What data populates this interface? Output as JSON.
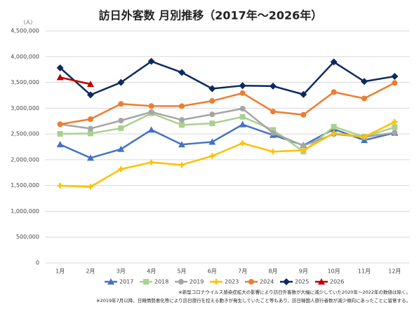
{
  "chart_data": {
    "type": "line",
    "title": "訪日外客数 月別推移（2017年～2026年）",
    "y_unit": "（人）",
    "categories": [
      "1月",
      "2月",
      "3月",
      "4月",
      "5月",
      "6月",
      "7月",
      "8月",
      "9月",
      "10月",
      "11月",
      "12月"
    ],
    "ylim": [
      0,
      4500000
    ],
    "yticks": [
      {
        "value": 0,
        "label": "0"
      },
      {
        "value": 500000,
        "label": "500,000"
      },
      {
        "value": 1000000,
        "label": "1,000,000"
      },
      {
        "value": 1500000,
        "label": "1,500,000"
      },
      {
        "value": 2000000,
        "label": "2,000,000"
      },
      {
        "value": 2500000,
        "label": "2,500,000"
      },
      {
        "value": 3000000,
        "label": "3,000,000"
      },
      {
        "value": 3500000,
        "label": "3,500,000"
      },
      {
        "value": 4000000,
        "label": "4,000,000"
      },
      {
        "value": 4500000,
        "label": "4,500,000"
      }
    ],
    "grid": true,
    "legend": "bottom",
    "series": [
      {
        "name": "2017",
        "color": "#4472c4",
        "marker": "triangle",
        "values": [
          2296000,
          2035000,
          2205000,
          2579000,
          2295000,
          2346000,
          2683000,
          2478000,
          2280000,
          2595000,
          2378000,
          2521000
        ]
      },
      {
        "name": "2018",
        "color": "#a9d18e",
        "marker": "square",
        "values": [
          2501000,
          2509000,
          2611000,
          2901000,
          2675000,
          2705000,
          2832000,
          2578000,
          2159000,
          2641000,
          2443000,
          2632000
        ]
      },
      {
        "name": "2019",
        "color": "#a5a5a5",
        "marker": "circle",
        "values": [
          2689000,
          2604000,
          2760000,
          2926000,
          2773000,
          2880000,
          2991000,
          2520000,
          2272000,
          2496000,
          2441000,
          2526000
        ]
      },
      {
        "name": "2023",
        "color": "#ffc000",
        "marker": "plus",
        "values": [
          1497000,
          1475000,
          1817000,
          1949000,
          1899000,
          2073000,
          2320000,
          2156000,
          2184000,
          2517000,
          2441000,
          2734000
        ]
      },
      {
        "name": "2024",
        "color": "#ed7d31",
        "marker": "circle",
        "values": [
          2688000,
          2788000,
          3082000,
          3042000,
          3040000,
          3140000,
          3293000,
          2935000,
          2872000,
          3312000,
          3188000,
          3490000
        ]
      },
      {
        "name": "2025",
        "color": "#0d2a5e",
        "marker": "diamond",
        "values": [
          3782000,
          3258000,
          3499000,
          3908000,
          3693000,
          3378000,
          3437000,
          3428000,
          3266000,
          3896000,
          3518000,
          3617000
        ]
      },
      {
        "name": "2026",
        "color": "#c00000",
        "marker": "triangle",
        "values": [
          3597000,
          3466000,
          null,
          null,
          null,
          null,
          null,
          null,
          null,
          null,
          null,
          null
        ]
      }
    ],
    "notes": [
      "※新型コロナウイルス感染症拡大の影響により訪日外客数が大幅に減少していた2020年～2022年の数値は除く。",
      "※2019年7月以降、日韓情勢悪化等により訪日旅行を控える動きが発生していたこと等もあり、訪日韓国人旅行者数が減少傾向にあったことに留意する。"
    ]
  }
}
